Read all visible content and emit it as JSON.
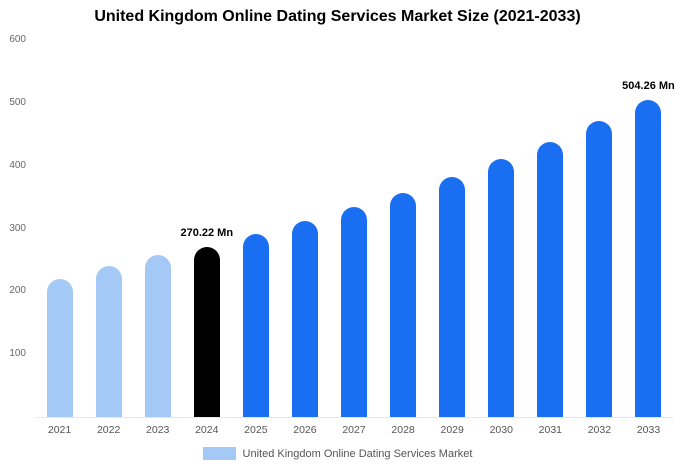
{
  "title": "United Kingdom Online Dating Services Market Size (2021-2033)",
  "chart_data": {
    "type": "bar",
    "title": "United Kingdom Online Dating Services Market Size (2021-2033)",
    "ylabel": "",
    "xlabel": "",
    "ylim": [
      0,
      600
    ],
    "yticks": [
      100,
      200,
      300,
      400,
      500,
      600
    ],
    "grid": false,
    "legend_position": "bottom",
    "legend": {
      "label": "United Kingdom Online Dating Services Market",
      "swatch_color": "#a4c9f7"
    },
    "colors": {
      "past": "#a4c9f7",
      "current": "#000000",
      "forecast": "#1a6ef2"
    },
    "points": [
      {
        "year": "2021",
        "value": 219,
        "segment": "past"
      },
      {
        "year": "2022",
        "value": 240,
        "segment": "past"
      },
      {
        "year": "2023",
        "value": 258,
        "segment": "past"
      },
      {
        "year": "2024",
        "value": 270.22,
        "segment": "current",
        "label": "270.22 Mn"
      },
      {
        "year": "2025",
        "value": 291,
        "segment": "forecast"
      },
      {
        "year": "2026",
        "value": 312,
        "segment": "forecast"
      },
      {
        "year": "2027",
        "value": 334,
        "segment": "forecast"
      },
      {
        "year": "2028",
        "value": 357,
        "segment": "forecast"
      },
      {
        "year": "2029",
        "value": 382,
        "segment": "forecast"
      },
      {
        "year": "2030",
        "value": 410,
        "segment": "forecast"
      },
      {
        "year": "2031",
        "value": 438,
        "segment": "forecast"
      },
      {
        "year": "2032",
        "value": 471,
        "segment": "forecast"
      },
      {
        "year": "2033",
        "value": 504.26,
        "segment": "forecast",
        "label": "504.26 Mn"
      }
    ]
  }
}
